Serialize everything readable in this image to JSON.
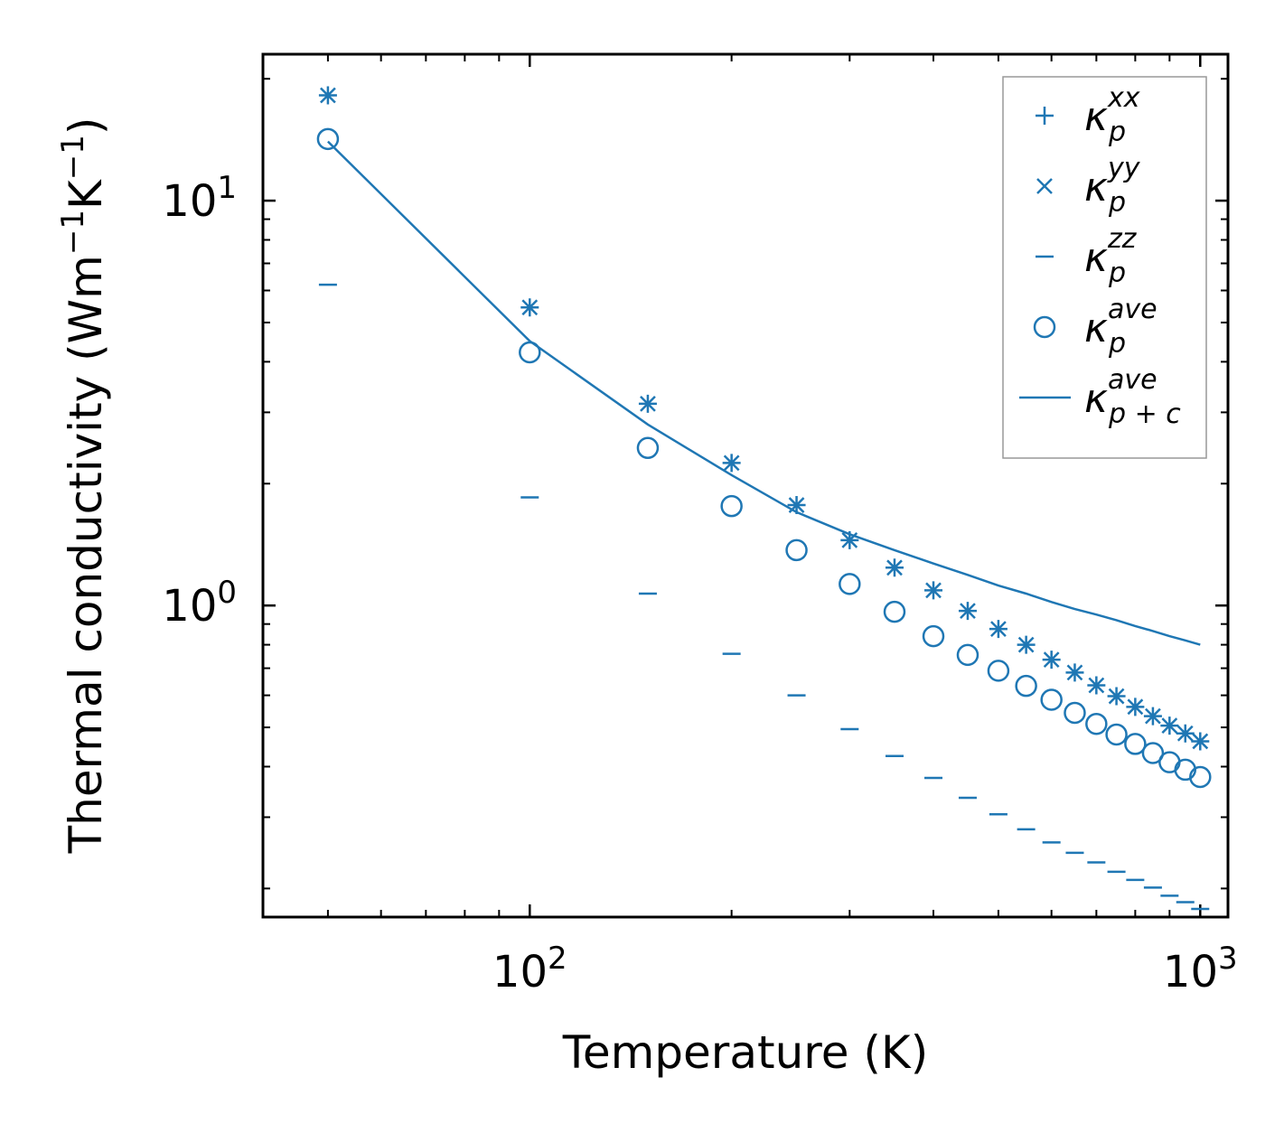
{
  "chart_data": {
    "type": "scatter",
    "xscale": "log",
    "yscale": "log",
    "xlim": [
      40,
      1100
    ],
    "ylim": [
      0.17,
      23
    ],
    "xlabel": "Temperature (K)",
    "ylabel": {
      "prefix": "Thermal conductivity (Wm",
      "exp1": "−1",
      "mid": "K",
      "exp2": "−1",
      "suffix": ")"
    },
    "xticks": [
      {
        "value": 100,
        "base": "10",
        "exp": "2"
      },
      {
        "value": 1000,
        "base": "10",
        "exp": "3"
      }
    ],
    "yticks": [
      {
        "value": 1,
        "base": "10",
        "exp": "0"
      },
      {
        "value": 10,
        "base": "10",
        "exp": "1"
      }
    ],
    "color": "#1f77b4",
    "x": [
      50,
      100,
      150,
      200,
      250,
      300,
      350,
      400,
      450,
      500,
      550,
      600,
      650,
      700,
      750,
      800,
      850,
      900,
      950,
      1000
    ],
    "series": [
      {
        "name": "kappa_p_xx",
        "marker": "plus",
        "values": [
          18.2,
          5.45,
          3.15,
          2.25,
          1.77,
          1.45,
          1.24,
          1.09,
          0.97,
          0.875,
          0.8,
          0.735,
          0.683,
          0.635,
          0.597,
          0.562,
          0.533,
          0.505,
          0.483,
          0.462
        ]
      },
      {
        "name": "kappa_p_yy",
        "marker": "x",
        "values": [
          18.2,
          5.45,
          3.15,
          2.25,
          1.77,
          1.45,
          1.24,
          1.09,
          0.97,
          0.875,
          0.8,
          0.735,
          0.683,
          0.635,
          0.597,
          0.562,
          0.533,
          0.505,
          0.483,
          0.462
        ]
      },
      {
        "name": "kappa_p_zz",
        "marker": "hline",
        "values": [
          6.2,
          1.85,
          1.07,
          0.76,
          0.6,
          0.495,
          0.425,
          0.375,
          0.335,
          0.305,
          0.28,
          0.26,
          0.245,
          0.232,
          0.22,
          0.21,
          0.201,
          0.192,
          0.185,
          0.178
        ]
      },
      {
        "name": "kappa_p_ave",
        "marker": "circle",
        "values": [
          14.2,
          4.22,
          2.45,
          1.76,
          1.37,
          1.13,
          0.965,
          0.84,
          0.755,
          0.69,
          0.633,
          0.585,
          0.543,
          0.51,
          0.48,
          0.455,
          0.432,
          0.41,
          0.393,
          0.377
        ]
      },
      {
        "name": "kappa_pc_ave",
        "marker": "line",
        "values": [
          14.0,
          4.5,
          2.8,
          2.1,
          1.7,
          1.5,
          1.37,
          1.27,
          1.19,
          1.12,
          1.07,
          1.02,
          0.98,
          0.95,
          0.92,
          0.89,
          0.865,
          0.84,
          0.82,
          0.8
        ]
      }
    ],
    "legend": {
      "placement": "top-right",
      "entries": [
        {
          "marker": "plus",
          "base": "κ",
          "sub": "p",
          "sup": "xx"
        },
        {
          "marker": "x",
          "base": "κ",
          "sub": "p",
          "sup": "yy"
        },
        {
          "marker": "hline",
          "base": "κ",
          "sub": "p",
          "sup": "zz"
        },
        {
          "marker": "circle",
          "base": "κ",
          "sub": "p",
          "sup": "ave"
        },
        {
          "marker": "line",
          "base": "κ",
          "sub": "p + c",
          "sup": "ave"
        }
      ]
    }
  }
}
